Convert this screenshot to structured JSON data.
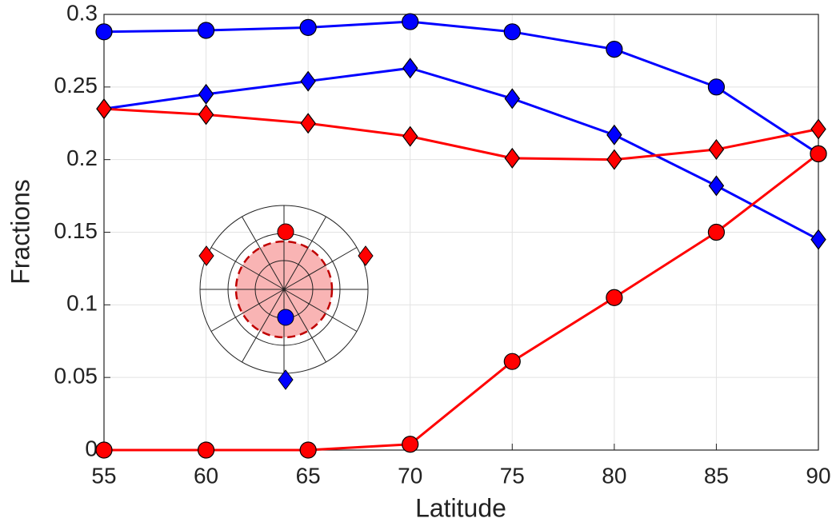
{
  "chart_data": {
    "type": "line",
    "x_label": "Latitude",
    "y_label": "Fractions",
    "x": [
      55,
      60,
      65,
      70,
      75,
      80,
      85,
      90
    ],
    "series": [
      {
        "color": "#0000ff",
        "marker": "circle",
        "values": [
          0.288,
          0.289,
          0.291,
          0.295,
          0.288,
          0.276,
          0.25,
          0.204
        ]
      },
      {
        "color": "#0000ff",
        "marker": "diamond",
        "values": [
          0.235,
          0.245,
          0.254,
          0.263,
          0.242,
          0.217,
          0.182,
          0.145
        ]
      },
      {
        "color": "#ff0000",
        "marker": "diamond",
        "values": [
          0.235,
          0.231,
          0.225,
          0.216,
          0.201,
          0.2,
          0.207,
          0.221
        ]
      },
      {
        "color": "#ff0000",
        "marker": "circle",
        "values": [
          0,
          0,
          0,
          0.004,
          0.061,
          0.105,
          0.15,
          0.204
        ]
      }
    ],
    "xlim": [
      55,
      90
    ],
    "xticks": [
      55,
      60,
      65,
      70,
      75,
      80,
      85,
      90
    ],
    "ylim": [
      0,
      0.3
    ],
    "yticks": [
      0,
      0.05,
      0.1,
      0.15,
      0.2,
      0.25,
      0.3
    ],
    "grid": true
  }
}
